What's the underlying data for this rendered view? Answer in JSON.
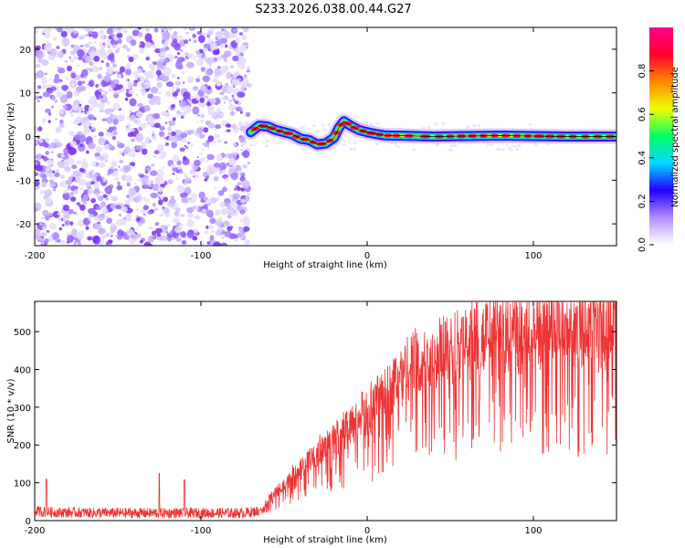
{
  "title": "S233.2026.038.00.44.G27",
  "chart_data": [
    {
      "type": "heatmap",
      "name": "spectrogram",
      "xlabel": "Height of straight line (km)",
      "ylabel": "Frequency (Hz)",
      "xlim": [
        -200,
        150
      ],
      "ylim": [
        -25,
        25
      ],
      "xticks": [
        -200,
        -100,
        0,
        100
      ],
      "yticks": [
        -20,
        -10,
        0,
        10,
        20
      ],
      "noise_region_x": [
        -200,
        -70
      ],
      "signal_start_x": -70,
      "tone_track": {
        "x": [
          -70,
          -65,
          -60,
          -55,
          -50,
          -45,
          -40,
          -35,
          -30,
          -25,
          -20,
          -17,
          -14,
          -10,
          -5,
          0,
          5,
          10,
          15,
          20,
          30,
          40,
          60,
          80,
          100,
          120,
          150
        ],
        "freq": [
          1.0,
          2.5,
          2.3,
          1.5,
          1.0,
          0.5,
          -0.5,
          -0.8,
          -1.8,
          -1.6,
          -0.3,
          2.0,
          3.5,
          2.5,
          1.5,
          1.0,
          0.6,
          0.3,
          0.2,
          0.2,
          0.1,
          0.0,
          0.1,
          0.2,
          0.1,
          0.0,
          0.0
        ]
      },
      "colorbar": {
        "label": "Normalized spectral amplitude",
        "range": [
          0,
          1
        ],
        "ticks": [
          "0.0",
          "0.2",
          "0.4",
          "0.6",
          "0.8"
        ],
        "colors": [
          "#ffffff",
          "#b48cff",
          "#2200ff",
          "#00d8ff",
          "#00ff60",
          "#f0ff00",
          "#ff8800",
          "#ff0030",
          "#ff0090"
        ]
      }
    },
    {
      "type": "line",
      "name": "snr",
      "xlabel": "Height of straight line (km)",
      "ylabel": "SNR (10 * v/v)",
      "xlim": [
        -200,
        150
      ],
      "ylim": [
        0,
        580
      ],
      "xticks": [
        -200,
        -100,
        0,
        100
      ],
      "yticks": [
        0,
        100,
        200,
        300,
        400,
        500
      ],
      "color": "#ee3333",
      "series": [
        {
          "name": "SNR",
          "envelope_x": [
            -200,
            -190,
            -150,
            -100,
            -75,
            -65,
            -55,
            -45,
            -35,
            -25,
            -15,
            -5,
            5,
            15,
            25,
            35,
            45,
            60,
            80,
            100,
            120,
            150
          ],
          "envelope_mean": [
            25,
            22,
            20,
            20,
            20,
            25,
            70,
            110,
            150,
            190,
            220,
            250,
            290,
            340,
            380,
            410,
            430,
            450,
            470,
            480,
            495,
            500
          ],
          "spikes": [
            {
              "x": -193,
              "y": 110
            },
            {
              "x": -125,
              "y": 125
            },
            {
              "x": -110,
              "y": 108
            },
            {
              "x": -3,
              "y": 340
            },
            {
              "x": 127,
              "y": 170
            }
          ]
        }
      ]
    }
  ]
}
